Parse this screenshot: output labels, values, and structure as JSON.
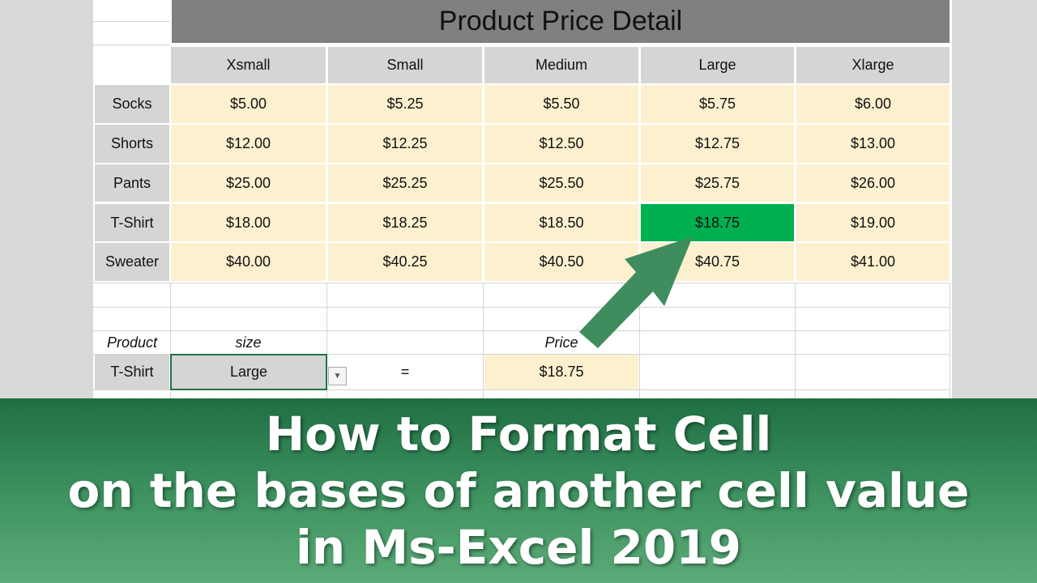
{
  "title": "Product Price Detail",
  "sizes": [
    "Xsmall",
    "Small",
    "Medium",
    "Large",
    "Xlarge"
  ],
  "rows": [
    {
      "product": "Socks",
      "prices": [
        "$5.00",
        "$5.25",
        "$5.50",
        "$5.75",
        "$6.00"
      ]
    },
    {
      "product": "Shorts",
      "prices": [
        "$12.00",
        "$12.25",
        "$12.50",
        "$12.75",
        "$13.00"
      ]
    },
    {
      "product": "Pants",
      "prices": [
        "$25.00",
        "$25.25",
        "$25.50",
        "$25.75",
        "$26.00"
      ]
    },
    {
      "product": "T-Shirt",
      "prices": [
        "$18.00",
        "$18.25",
        "$18.50",
        "$18.75",
        "$19.00"
      ]
    },
    {
      "product": "Sweater",
      "prices": [
        "$40.00",
        "$40.25",
        "$40.50",
        "$40.75",
        "$41.00"
      ]
    }
  ],
  "highlight": {
    "row": 3,
    "col": 3,
    "color": "#00b050"
  },
  "lookup": {
    "product_label": "Product",
    "size_label": "size",
    "price_label": "Price",
    "product": "T-Shirt",
    "size": "Large",
    "equals": "=",
    "price": "$18.75"
  },
  "banner": {
    "line1": "How to Format Cell",
    "line2": "on the bases of another cell value",
    "line3": "in Ms-Excel 2019"
  },
  "colors": {
    "price_fill": "#fdf0cf",
    "header_fill": "#d5d5d5",
    "arrow": "#3f8d5e"
  }
}
